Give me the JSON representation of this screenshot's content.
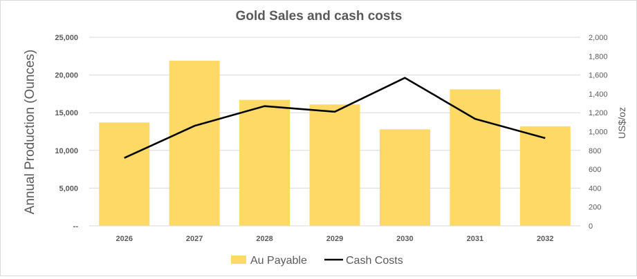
{
  "chart_data": {
    "type": "bar",
    "title": "Gold Sales and cash costs",
    "categories": [
      "2026",
      "2027",
      "2028",
      "2029",
      "2030",
      "2031",
      "2032"
    ],
    "series": [
      {
        "name": "Au Payable",
        "type": "bar",
        "axis": "left",
        "color": "#FFD966",
        "values": [
          13700,
          21900,
          16700,
          16100,
          12800,
          18100,
          13200
        ]
      },
      {
        "name": "Cash Costs",
        "type": "line",
        "axis": "right",
        "color": "#000000",
        "values": [
          720,
          1060,
          1270,
          1210,
          1570,
          1135,
          930
        ]
      }
    ],
    "ylabel": "Annual Production (Ounces)",
    "y2label": "US$/oz",
    "ylim": [
      0,
      25000
    ],
    "y2lim": [
      0,
      2000
    ],
    "y_ticks": [
      "--",
      "5,000",
      "10,000",
      "15,000",
      "20,000",
      "25,000"
    ],
    "y2_ticks": [
      "0",
      "200",
      "400",
      "600",
      "800",
      "1,000",
      "1,200",
      "1,400",
      "1,600",
      "1,800",
      "2,000"
    ],
    "grid": true,
    "legend_position": "bottom"
  }
}
